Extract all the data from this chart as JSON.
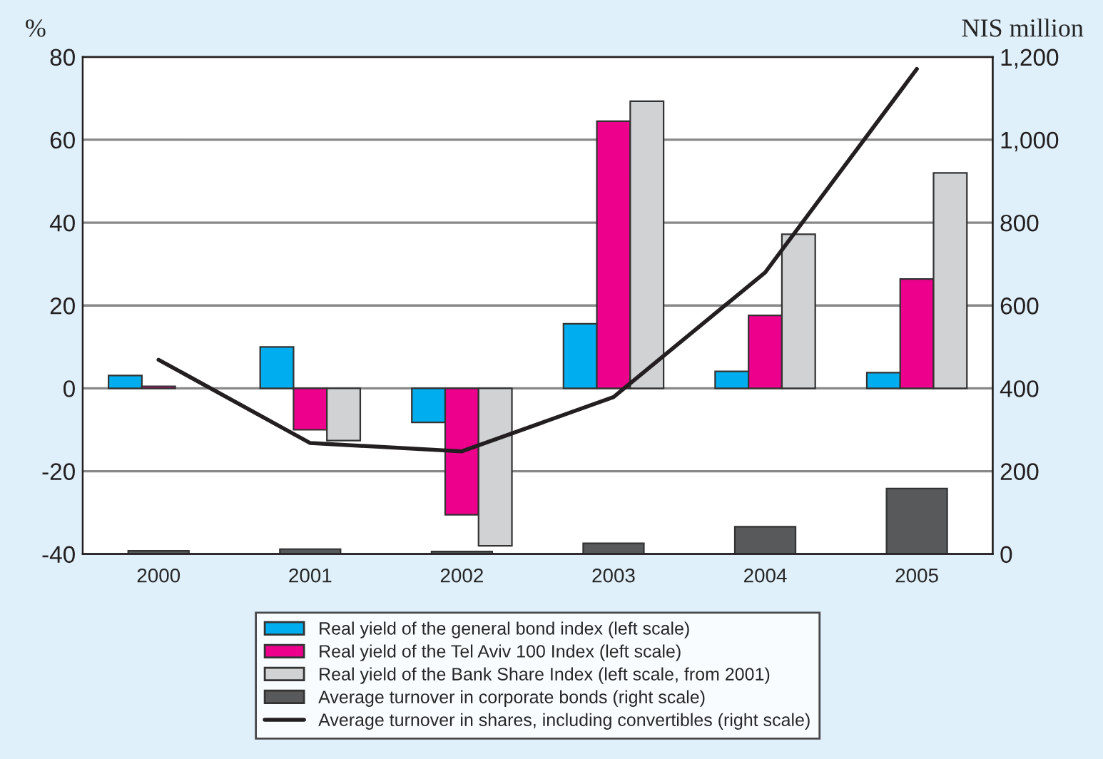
{
  "chart_data": {
    "type": "bar",
    "ylabel": "%",
    "y2label": "NIS million",
    "categories": [
      "2000",
      "2001",
      "2002",
      "2003",
      "2004",
      "2005"
    ],
    "series": [
      {
        "name": "Real yield of the general bond index (left scale)",
        "color": "#00aeef",
        "values": [
          3.1,
          10,
          -8.2,
          15.6,
          4.1,
          3.8
        ]
      },
      {
        "name": "Real yield of the Tel Aviv 100 Index (left scale)",
        "color": "#ec008c",
        "values": [
          0.5,
          -10,
          -30.5,
          64.5,
          17.6,
          26.4
        ]
      },
      {
        "name": "Real yield of the Bank Share Index (left scale, from 2001)",
        "color": "#d1d2d4",
        "values": [
          null,
          -12.6,
          -38,
          69.3,
          37.2,
          52
        ]
      },
      {
        "name": "Average turnover in corporate bonds (right scale)",
        "color": "#58595b",
        "axis": "y2",
        "values": [
          8,
          12,
          6,
          26,
          66,
          158
        ]
      },
      {
        "name": "Average turnover in shares, including convertibles (right scale)",
        "type": "line",
        "color": "#231f20",
        "axis": "y2",
        "values": [
          469,
          268,
          248,
          379,
          680,
          1171
        ]
      }
    ],
    "ylim": [
      -40,
      80
    ],
    "yticks": [
      -40,
      -20,
      0,
      20,
      40,
      60,
      80
    ],
    "y2lim": [
      0,
      1200
    ],
    "y2ticks": [
      0,
      200,
      400,
      600,
      800,
      {
        "value": 1000,
        "label": "1,000"
      },
      {
        "value": 1200,
        "label": "1,200"
      }
    ],
    "grid": "y",
    "legend": "bottom",
    "line_style": "solid",
    "marker": "none"
  }
}
